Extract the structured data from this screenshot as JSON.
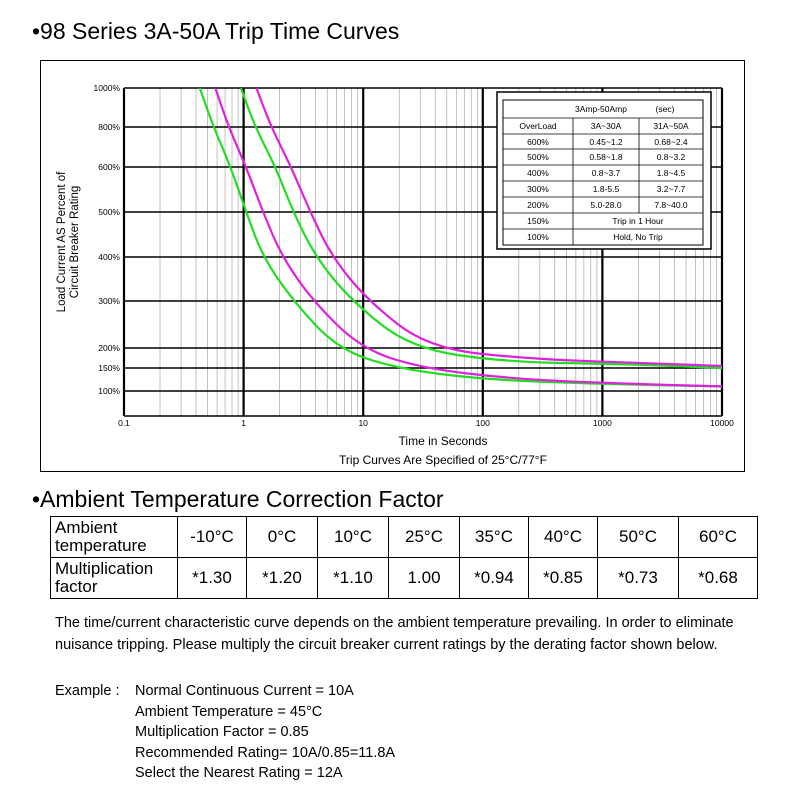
{
  "title1": "•98 Series 3A-50A Trip Time Curves",
  "title2": "•Ambient Temperature Correction Factor",
  "chart_data": {
    "type": "line",
    "xlabel": "Time in Seconds",
    "ylabel_line1": "Load Current AS Percent of",
    "ylabel_line2": "Circuit Breaker Rating",
    "caption": "Trip Curves Are Specified of 25°C/77°F",
    "x_scale": "log",
    "xlim": [
      0.1,
      10000
    ],
    "x_ticks": [
      "0.1",
      "1",
      "10",
      "100",
      "1000",
      "10000"
    ],
    "y_ticks": [
      "100%",
      "150%",
      "200%",
      "300%",
      "400%",
      "500%",
      "600%",
      "800%",
      "1000%"
    ],
    "grid": true,
    "series": [
      {
        "color": "#22dd22",
        "points": [
          [
            0.43,
            1000
          ],
          [
            0.56,
            800
          ],
          [
            0.78,
            600
          ],
          [
            1.05,
            500
          ],
          [
            1.45,
            400
          ],
          [
            2.6,
            300
          ],
          [
            6.0,
            200
          ],
          [
            18,
            150
          ],
          [
            100,
            125
          ],
          [
            1000,
            115
          ],
          [
            10000,
            110
          ]
        ]
      },
      {
        "color": "#dd22dd",
        "points": [
          [
            0.58,
            1000
          ],
          [
            0.75,
            800
          ],
          [
            1.05,
            600
          ],
          [
            1.45,
            500
          ],
          [
            2.1,
            400
          ],
          [
            3.8,
            300
          ],
          [
            9.5,
            200
          ],
          [
            30,
            150
          ],
          [
            200,
            125
          ],
          [
            2000,
            115
          ],
          [
            10000,
            110
          ]
        ]
      },
      {
        "color": "#22dd22",
        "points": [
          [
            0.95,
            1000
          ],
          [
            1.25,
            800
          ],
          [
            1.85,
            600
          ],
          [
            2.6,
            500
          ],
          [
            4.0,
            400
          ],
          [
            8.0,
            300
          ],
          [
            25,
            200
          ],
          [
            150,
            165
          ],
          [
            1500,
            160
          ],
          [
            10000,
            150
          ]
        ]
      },
      {
        "color": "#dd22dd",
        "points": [
          [
            1.28,
            1000
          ],
          [
            1.7,
            800
          ],
          [
            2.5,
            600
          ],
          [
            3.6,
            500
          ],
          [
            5.5,
            400
          ],
          [
            11,
            300
          ],
          [
            35,
            200
          ],
          [
            250,
            172
          ],
          [
            2500,
            162
          ],
          [
            10000,
            155
          ]
        ]
      }
    ],
    "inset_table": {
      "title": "3Amp-50Amp",
      "unit": "(sec)",
      "headers": [
        "OverLoad",
        "3A~30A",
        "31A~50A"
      ],
      "rows": [
        [
          "600%",
          "0.45~1.2",
          "0.68~2.4"
        ],
        [
          "500%",
          "0.58~1.8",
          "0.8~3.2"
        ],
        [
          "400%",
          "0.8~3.7",
          "1.8~4.5"
        ],
        [
          "300%",
          "1.8-5.5",
          "3.2~7.7"
        ],
        [
          "200%",
          "5.0-28.0",
          "7.8~40.0"
        ]
      ],
      "merged_rows": [
        [
          "150%",
          "Trip in 1 Hour"
        ],
        [
          "100%",
          "Hold, No Trip"
        ]
      ]
    }
  },
  "temp_table": {
    "row1_label_line1": "Ambient",
    "row1_label_line2": "temperature",
    "row2_label_line1": "Multiplication",
    "row2_label_line2": "factor",
    "temps": [
      "-10°C",
      "0°C",
      "10°C",
      "25°C",
      "35°C",
      "40°C",
      "50°C",
      "60°C"
    ],
    "factors": [
      "*1.30",
      "*1.20",
      "*1.10",
      "1.00",
      "*0.94",
      "*0.85",
      "*0.73",
      "*0.68"
    ]
  },
  "note": "The time/current characteristic curve depends on the ambient temperature prevailing. In order to eliminate nuisance tripping. Please multiply the circuit breaker current ratings by the derating factor shown below.",
  "example": {
    "label": "Example :",
    "lines": [
      "Normal Continuous Current = 10A",
      "Ambient Temperature = 45°C",
      "Multiplication Factor = 0.85",
      "Recommended Rating= 10A/0.85=11.8A",
      "Select the Nearest Rating = 12A"
    ]
  }
}
